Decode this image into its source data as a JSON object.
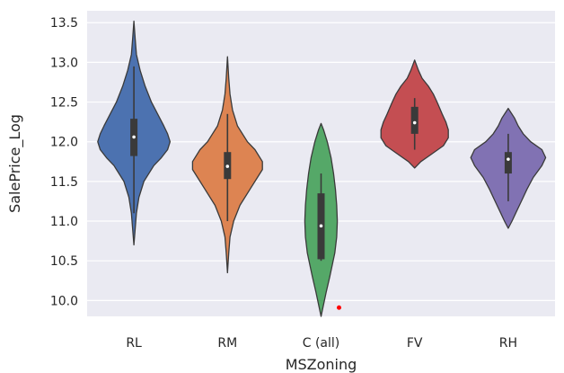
{
  "chart_data": {
    "type": "violin",
    "title": "",
    "xlabel": "MSZoning",
    "ylabel": "SalePrice_Log",
    "ylim": [
      9.8,
      13.65
    ],
    "yticks": [
      10.0,
      10.5,
      11.0,
      11.5,
      12.0,
      12.5,
      13.0,
      13.5
    ],
    "ytick_labels": [
      "10.0",
      "10.5",
      "11.0",
      "11.5",
      "12.0",
      "12.5",
      "13.0",
      "13.5"
    ],
    "grid": true,
    "background_color": "#eaeaf2",
    "categories": [
      {
        "label": "RL",
        "color": "#4c72b0",
        "min": 10.7,
        "max": 13.52,
        "q1": 11.82,
        "median": 12.06,
        "q3": 12.29,
        "whisker_low": 11.1,
        "whisker_high": 12.95,
        "profile": [
          [
            10.7,
            0.0
          ],
          [
            10.9,
            0.01
          ],
          [
            11.1,
            0.02
          ],
          [
            11.3,
            0.04
          ],
          [
            11.5,
            0.08
          ],
          [
            11.7,
            0.16
          ],
          [
            11.8,
            0.22
          ],
          [
            11.9,
            0.27
          ],
          [
            12.0,
            0.29
          ],
          [
            12.1,
            0.27
          ],
          [
            12.2,
            0.24
          ],
          [
            12.35,
            0.19
          ],
          [
            12.5,
            0.14
          ],
          [
            12.7,
            0.09
          ],
          [
            12.9,
            0.05
          ],
          [
            13.1,
            0.02
          ],
          [
            13.3,
            0.01
          ],
          [
            13.52,
            0.0
          ]
        ]
      },
      {
        "label": "RM",
        "color": "#dd8452",
        "min": 10.35,
        "max": 13.07,
        "q1": 11.53,
        "median": 11.69,
        "q3": 11.87,
        "whisker_low": 11.0,
        "whisker_high": 12.35,
        "profile": [
          [
            10.35,
            0.0
          ],
          [
            10.6,
            0.01
          ],
          [
            10.8,
            0.02
          ],
          [
            11.0,
            0.05
          ],
          [
            11.2,
            0.1
          ],
          [
            11.4,
            0.18
          ],
          [
            11.55,
            0.24
          ],
          [
            11.65,
            0.28
          ],
          [
            11.75,
            0.28
          ],
          [
            11.9,
            0.22
          ],
          [
            12.0,
            0.16
          ],
          [
            12.2,
            0.08
          ],
          [
            12.4,
            0.04
          ],
          [
            12.6,
            0.02
          ],
          [
            12.8,
            0.01
          ],
          [
            13.07,
            0.0
          ]
        ]
      },
      {
        "label": "C (all)",
        "color": "#55a868",
        "min": 9.8,
        "max": 12.23,
        "q1": 10.52,
        "median": 10.94,
        "q3": 11.35,
        "whisker_low": 10.5,
        "whisker_high": 11.6,
        "profile": [
          [
            9.8,
            0.0
          ],
          [
            9.95,
            0.02
          ],
          [
            10.1,
            0.04
          ],
          [
            10.3,
            0.07
          ],
          [
            10.45,
            0.09
          ],
          [
            10.6,
            0.11
          ],
          [
            10.8,
            0.125
          ],
          [
            11.0,
            0.13
          ],
          [
            11.2,
            0.125
          ],
          [
            11.4,
            0.115
          ],
          [
            11.6,
            0.1
          ],
          [
            11.8,
            0.08
          ],
          [
            12.0,
            0.05
          ],
          [
            12.15,
            0.02
          ],
          [
            12.23,
            0.0
          ]
        ]
      },
      {
        "label": "FV",
        "color": "#c44e52",
        "min": 11.67,
        "max": 13.03,
        "q1": 12.1,
        "median": 12.24,
        "q3": 12.44,
        "whisker_low": 11.9,
        "whisker_high": 12.55,
        "profile": [
          [
            11.67,
            0.0
          ],
          [
            11.75,
            0.05
          ],
          [
            11.85,
            0.14
          ],
          [
            11.95,
            0.23
          ],
          [
            12.05,
            0.27
          ],
          [
            12.15,
            0.27
          ],
          [
            12.25,
            0.25
          ],
          [
            12.35,
            0.22
          ],
          [
            12.5,
            0.18
          ],
          [
            12.6,
            0.15
          ],
          [
            12.7,
            0.11
          ],
          [
            12.8,
            0.06
          ],
          [
            12.9,
            0.03
          ],
          [
            13.03,
            0.0
          ]
        ]
      },
      {
        "label": "RH",
        "color": "#8172b3",
        "min": 10.91,
        "max": 12.42,
        "q1": 11.6,
        "median": 11.78,
        "q3": 11.87,
        "whisker_low": 11.25,
        "whisker_high": 12.1,
        "profile": [
          [
            10.91,
            0.0
          ],
          [
            11.0,
            0.03
          ],
          [
            11.1,
            0.06
          ],
          [
            11.2,
            0.09
          ],
          [
            11.3,
            0.12
          ],
          [
            11.4,
            0.15
          ],
          [
            11.55,
            0.2
          ],
          [
            11.7,
            0.27
          ],
          [
            11.8,
            0.3
          ],
          [
            11.9,
            0.27
          ],
          [
            12.0,
            0.18
          ],
          [
            12.1,
            0.12
          ],
          [
            12.2,
            0.08
          ],
          [
            12.3,
            0.05
          ],
          [
            12.42,
            0.0
          ]
        ]
      }
    ],
    "outliers": [
      {
        "category": "C (all)",
        "value": 9.91,
        "color": "#ff0000"
      }
    ]
  }
}
